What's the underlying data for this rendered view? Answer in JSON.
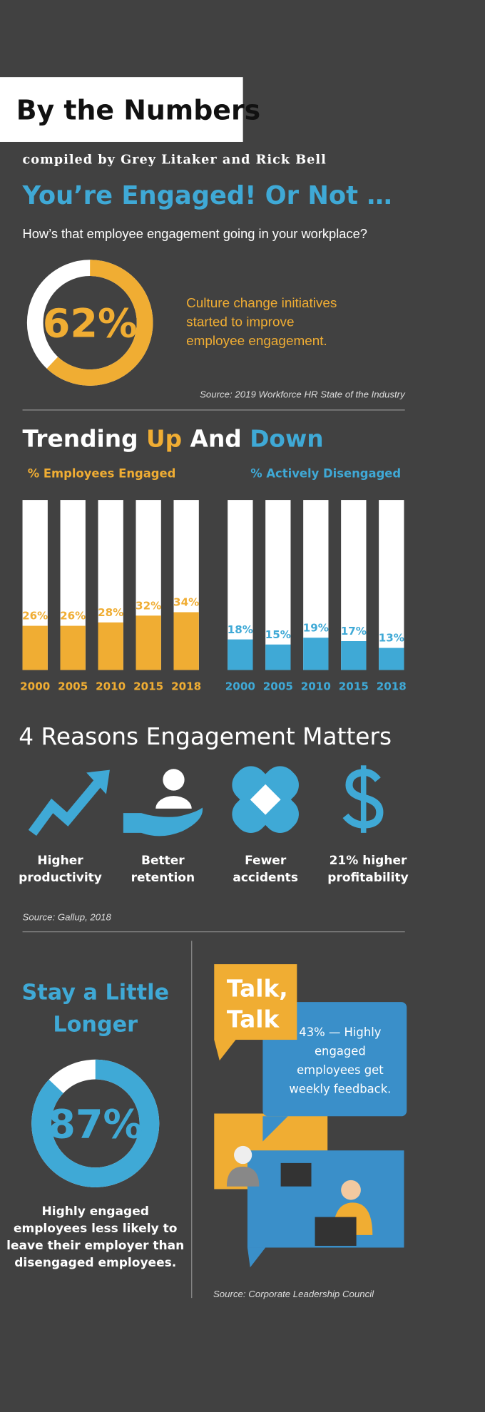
{
  "header": {
    "title": "By the Numbers",
    "byline": "compiled by Grey Litaker and Rick Bell"
  },
  "engaged": {
    "title": "You’re Engaged! Or Not …",
    "subtitle": "How’s that employee engagement going in your workplace?"
  },
  "trending": {
    "title": [
      "Trending ",
      "Up",
      " And ",
      "Down"
    ]
  },
  "reasons": {
    "title": "4 Reasons Engagement Matters",
    "items": [
      [
        "Higher",
        "productivity"
      ],
      [
        "Better",
        "retention"
      ],
      [
        "Fewer",
        "accidents"
      ],
      [
        "21% higher",
        "profitability"
      ]
    ],
    "source": "Source: Gallup, 2018"
  },
  "stay": {
    "title": [
      "Stay a Little",
      "Longer"
    ]
  },
  "talk": {
    "title": [
      "Talk,",
      "Talk"
    ],
    "text": [
      "43% — Highly",
      "engaged",
      "employees get",
      "weekly feedback."
    ],
    "source": "Source: Corporate Leadership Council"
  },
  "chart_data": [
    {
      "type": "donut",
      "values": [
        62
      ],
      "value_labels": [
        "62%"
      ],
      "color": "#f0ad33",
      "annotation": [
        "Culture change initiatives",
        "started to improve",
        "employee engagement."
      ],
      "source": "Source: 2019 Workforce HR State of the Industry"
    },
    {
      "type": "bar",
      "title": "% Employees Engaged",
      "categories": [
        "2000",
        "2005",
        "2010",
        "2015",
        "2018"
      ],
      "values": [
        26,
        26,
        28,
        32,
        34
      ],
      "value_labels": [
        "26%",
        "26%",
        "28%",
        "32%",
        "34%"
      ],
      "color": "#f0ad33",
      "ylim": [
        0,
        100
      ]
    },
    {
      "type": "bar",
      "title": "% Actively Disengaged",
      "categories": [
        "2000",
        "2005",
        "2010",
        "2015",
        "2018"
      ],
      "values": [
        18,
        15,
        19,
        17,
        13
      ],
      "value_labels": [
        "18%",
        "15%",
        "19%",
        "17%",
        "13%"
      ],
      "color": "#3fa9d6",
      "ylim": [
        0,
        100
      ]
    },
    {
      "type": "donut",
      "values": [
        87
      ],
      "value_labels": [
        "87%"
      ],
      "color": "#3fa9d6",
      "caption": [
        "Highly engaged",
        "employees less likely to",
        "leave their employer than",
        "disengaged employees."
      ]
    }
  ]
}
